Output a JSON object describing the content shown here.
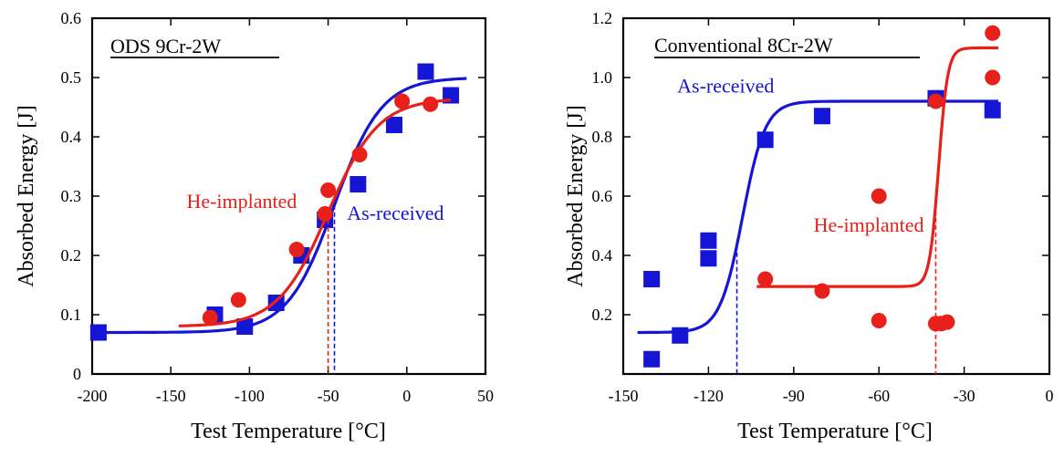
{
  "chart_data": [
    {
      "type": "scatter",
      "title": "ODS 9Cr-2W",
      "xlabel": "Test Temperature [°C]",
      "ylabel": "Absorbed Energy [J]",
      "xlim": [
        -200,
        50
      ],
      "ylim": [
        0,
        0.6
      ],
      "xticks": [
        -200,
        -150,
        -100,
        -50,
        0,
        50
      ],
      "xtick_labels": [
        "-200",
        "-150",
        "-100",
        "-50",
        "0",
        "50"
      ],
      "yticks": [
        0,
        0.1,
        0.2,
        0.3,
        0.4,
        0.5,
        0.6
      ],
      "ytick_labels": [
        "0",
        "0.1",
        "0.2",
        "0.3",
        "0.4",
        "0.5",
        "0.6"
      ],
      "colors": {
        "as_received": "#1515d6",
        "he_implanted": "#e8201a"
      },
      "series": [
        {
          "name": "As-received",
          "marker": "square",
          "x": [
            -196,
            -122,
            -103,
            -83,
            -67,
            -52,
            -31,
            -8,
            12,
            28
          ],
          "y": [
            0.07,
            0.1,
            0.08,
            0.12,
            0.2,
            0.26,
            0.32,
            0.42,
            0.51,
            0.47
          ],
          "fit": {
            "kind": "tanh",
            "lower": 0.07,
            "upper": 0.5,
            "mid": -46,
            "width": 30,
            "xmin": -200,
            "xmax": 38
          },
          "transition_temp": -46,
          "label": "As-received",
          "label_at": [
            -38,
            0.26
          ]
        },
        {
          "name": "He-implanted",
          "marker": "circle",
          "x": [
            -125,
            -107,
            -70,
            -52,
            -50,
            -30,
            -3,
            15
          ],
          "y": [
            0.095,
            0.125,
            0.21,
            0.27,
            0.31,
            0.37,
            0.46,
            0.455
          ],
          "fit": {
            "kind": "tanh",
            "lower": 0.08,
            "upper": 0.465,
            "mid": -50,
            "width": 32,
            "xmin": -145,
            "xmax": 28
          },
          "transition_temp": -50,
          "label": "He-implanted",
          "label_at": [
            -140,
            0.28
          ]
        }
      ]
    },
    {
      "type": "scatter",
      "title": "Conventional 8Cr-2W",
      "xlabel": "Test Temperature [°C]",
      "ylabel": "Absorbed Energy [J]",
      "xlim": [
        -150,
        0
      ],
      "ylim": [
        0,
        1.2
      ],
      "xticks": [
        -150,
        -120,
        -90,
        -60,
        -30,
        0
      ],
      "xtick_labels": [
        "-150",
        "-120",
        "-90",
        "-60",
        "-30",
        "0"
      ],
      "yticks": [
        0.2,
        0.4,
        0.6,
        0.8,
        1.0,
        1.2
      ],
      "ytick_labels": [
        "0.2",
        "0.4",
        "0.6",
        "0.8",
        "1.0",
        "1.2"
      ],
      "colors": {
        "as_received": "#1515d6",
        "he_implanted": "#e8201a"
      },
      "series": [
        {
          "name": "As-received",
          "marker": "square",
          "x": [
            -140,
            -140,
            -130,
            -120,
            -120,
            -100,
            -80,
            -40,
            -20
          ],
          "y": [
            0.32,
            0.05,
            0.13,
            0.45,
            0.39,
            0.79,
            0.87,
            0.93,
            0.89
          ],
          "fit": {
            "kind": "tanh",
            "lower": 0.14,
            "upper": 0.92,
            "mid": -108,
            "width": 8,
            "xmin": -145,
            "xmax": -18
          },
          "transition_temp": -110,
          "label": "As-received",
          "label_at": [
            -131,
            0.95
          ]
        },
        {
          "name": "He-implanted",
          "marker": "circle",
          "x": [
            -100,
            -80,
            -60,
            -60,
            -40,
            -38,
            -36,
            -40,
            -20,
            -20
          ],
          "y": [
            0.32,
            0.28,
            0.6,
            0.18,
            0.17,
            0.17,
            0.175,
            0.92,
            1.15,
            1.0
          ],
          "fit": {
            "kind": "tanh",
            "lower": 0.295,
            "upper": 1.1,
            "mid": -39,
            "width": 3.2,
            "xmin": -103,
            "xmax": -18
          },
          "transition_temp": -40,
          "label": "He-implanted",
          "label_at": [
            -83,
            0.48
          ]
        }
      ]
    }
  ]
}
